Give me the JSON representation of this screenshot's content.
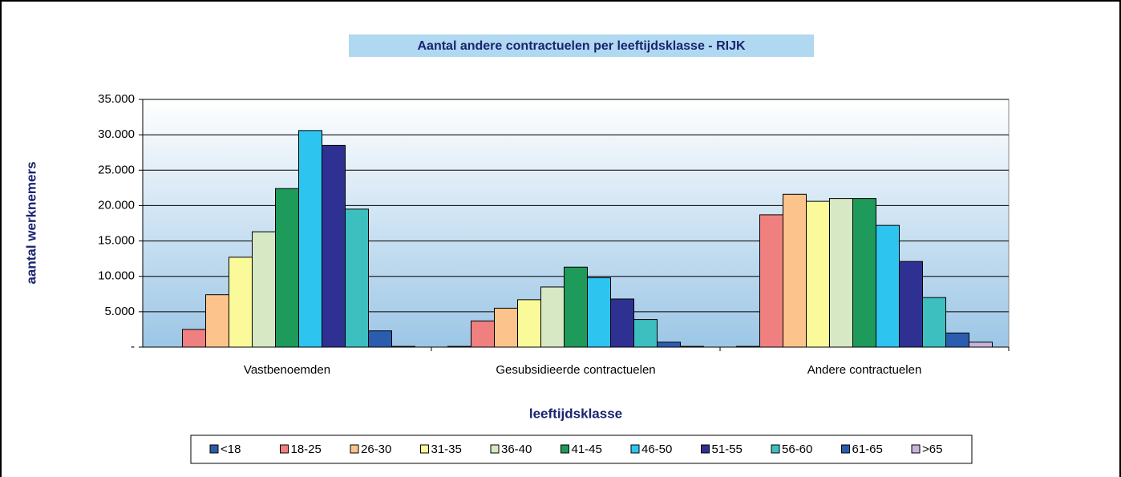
{
  "chart_data": {
    "type": "bar",
    "title": "Aantal andere contractuelen per leeftijdsklasse - RIJK",
    "y_label": "aantal werknemers",
    "x_label": "leeftijdsklasse",
    "categories": [
      "Vastbenoemden",
      "Gesubsidieerde contractuelen",
      "Andere contractuelen"
    ],
    "series": [
      {
        "name": "<18",
        "color": "#2f5aa8",
        "values": [
          0,
          100,
          100
        ]
      },
      {
        "name": "18-25",
        "color": "#f08080",
        "values": [
          2500,
          3700,
          18700
        ]
      },
      {
        "name": "26-30",
        "color": "#fcc48c",
        "values": [
          7400,
          5500,
          21600
        ]
      },
      {
        "name": "31-35",
        "color": "#fafa9a",
        "values": [
          12700,
          6700,
          20600
        ]
      },
      {
        "name": "36-40",
        "color": "#d6e8c4",
        "values": [
          16300,
          8500,
          21000
        ]
      },
      {
        "name": "41-45",
        "color": "#1e9a5a",
        "values": [
          22400,
          11300,
          21000
        ]
      },
      {
        "name": "46-50",
        "color": "#2ec4f0",
        "values": [
          30600,
          9800,
          17200
        ]
      },
      {
        "name": "51-55",
        "color": "#2e3192",
        "values": [
          28500,
          6800,
          12100
        ]
      },
      {
        "name": "56-60",
        "color": "#3dbfbf",
        "values": [
          19500,
          3900,
          7000
        ]
      },
      {
        "name": "61-65",
        "color": "#2a5db0",
        "values": [
          2300,
          700,
          2000
        ]
      },
      {
        "name": ">65",
        "color": "#c8b4d8",
        "values": [
          100,
          100,
          700
        ]
      }
    ],
    "ylim": [
      0,
      35000
    ],
    "yticks": [
      {
        "value": 0,
        "label": "-"
      },
      {
        "value": 5000,
        "label": "5.000"
      },
      {
        "value": 10000,
        "label": "10.000"
      },
      {
        "value": 15000,
        "label": "15.000"
      },
      {
        "value": 20000,
        "label": "20.000"
      },
      {
        "value": 25000,
        "label": "25.000"
      },
      {
        "value": 30000,
        "label": "30.000"
      },
      {
        "value": 35000,
        "label": "35.000"
      }
    ],
    "grid": true
  }
}
